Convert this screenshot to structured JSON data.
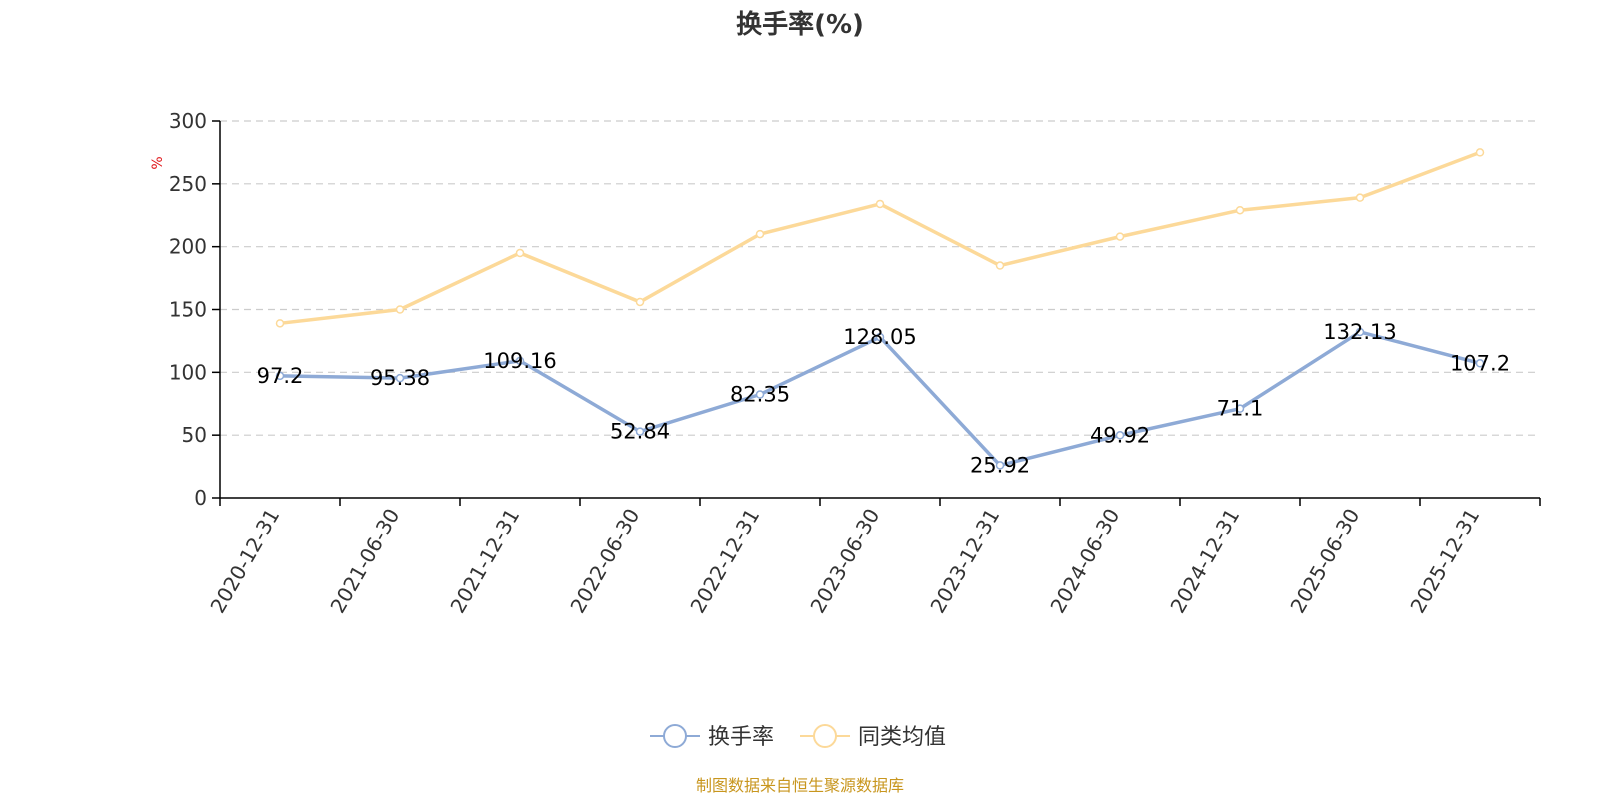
{
  "chart_data": {
    "type": "line",
    "title": "换手率(%)",
    "ylabel": "%",
    "xlabel": "",
    "ylim": [
      0,
      300
    ],
    "yticks": [
      0,
      50,
      100,
      150,
      200,
      250,
      300
    ],
    "grid": true,
    "legend_position": "bottom-center",
    "categories": [
      "2020-12-31",
      "2021-06-30",
      "2021-12-31",
      "2022-06-30",
      "2022-12-31",
      "2023-06-30",
      "2023-12-31",
      "2024-06-30",
      "2024-12-31",
      "2025-06-30",
      "2025-12-31"
    ],
    "series": [
      {
        "name": "换手率",
        "color": "#8eaad6",
        "show_labels": true,
        "values": [
          97.2,
          95.38,
          109.16,
          52.84,
          82.35,
          128.05,
          25.92,
          49.92,
          71.1,
          132.13,
          107.2
        ],
        "labels": [
          "97.2",
          "95.38",
          "109.16",
          "52.84",
          "82.35",
          "128.05",
          "25.92",
          "49.92",
          "71.1",
          "132.13",
          "107.2"
        ]
      },
      {
        "name": "同类均值",
        "color": "#fcd999",
        "show_labels": false,
        "values": [
          139,
          150,
          195,
          156,
          210,
          234,
          185,
          208,
          229,
          239,
          275
        ]
      }
    ]
  },
  "footer": {
    "source": "制图数据来自恒生聚源数据库"
  }
}
